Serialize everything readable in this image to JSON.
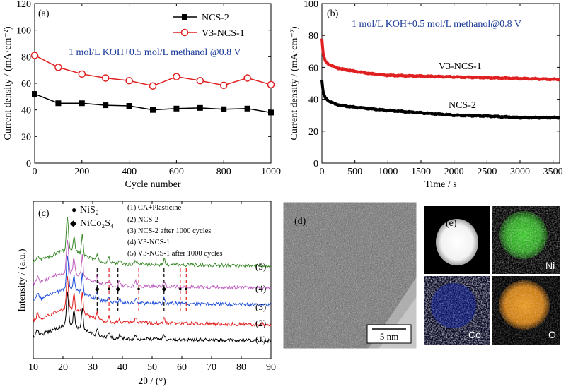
{
  "chart_data": [
    {
      "panel": "(a)",
      "type": "line",
      "xlabel": "Cycle number",
      "ylabel": "Current density / (mA·cm⁻²)",
      "xlim": [
        0,
        1000
      ],
      "ylim": [
        0,
        120
      ],
      "xticks": [
        0,
        200,
        400,
        600,
        800,
        1000
      ],
      "yticks": [
        0,
        20,
        40,
        60,
        80,
        100,
        120
      ],
      "annotation": "1 mol/L KOH+0.5 mol/L methanol @0.8 V",
      "legend_position": "top-right",
      "x": [
        0,
        100,
        200,
        300,
        400,
        500,
        600,
        700,
        800,
        900,
        1000
      ],
      "series": [
        {
          "name": "NCS-2",
          "color": "#000000",
          "marker": "square",
          "values": [
            52,
            45,
            45,
            43.5,
            43,
            40,
            41,
            41.5,
            40.5,
            41,
            38
          ]
        },
        {
          "name": "V3-NCS-1",
          "color": "#e02020",
          "marker": "circle",
          "values": [
            81,
            72,
            67,
            64,
            62,
            58,
            65,
            62,
            58.5,
            64,
            59
          ]
        }
      ]
    },
    {
      "panel": "(b)",
      "type": "line",
      "xlabel": "Time / s",
      "ylabel": "Current density / (mA·cm⁻²)",
      "xlim": [
        0,
        3600
      ],
      "ylim": [
        0,
        100
      ],
      "xticks": [
        0,
        500,
        1000,
        1500,
        2000,
        2500,
        3000,
        3500
      ],
      "yticks": [
        0,
        20,
        40,
        60,
        80,
        100
      ],
      "annotation": "1 mol/L KOH+0.5 mol/L methanol@0.8 V",
      "series": [
        {
          "name": "V3-NCS-1",
          "color": "#e02020",
          "x": [
            0,
            20,
            50,
            100,
            200,
            300,
            500,
            750,
            1000,
            1500,
            2000,
            2500,
            3000,
            3500,
            3600
          ],
          "values": [
            78,
            68,
            64,
            62,
            60,
            59,
            57.5,
            56,
            55,
            54.5,
            54,
            53.5,
            53,
            52.5,
            52.5
          ]
        },
        {
          "name": "NCS-2",
          "color": "#000000",
          "x": [
            0,
            20,
            50,
            100,
            200,
            300,
            500,
            750,
            1000,
            1500,
            2000,
            2500,
            3000,
            3500,
            3600
          ],
          "values": [
            52,
            44,
            41,
            39,
            37,
            36,
            35,
            34,
            33,
            31.5,
            30,
            29.5,
            28.5,
            28.5,
            28.5
          ]
        }
      ]
    },
    {
      "panel": "(c)",
      "type": "line",
      "xlabel": "2θ / (°)",
      "ylabel": "Intensity / (a.u.)",
      "xlim": [
        10,
        90
      ],
      "xticks": [
        10,
        20,
        30,
        40,
        50,
        60,
        70,
        80,
        90
      ],
      "legend_markers": [
        {
          "symbol": "●",
          "label": "NiS₂"
        },
        {
          "symbol": "◆",
          "label": "NiCo₂S₄"
        }
      ],
      "legend_text": [
        "(1) CA+Plasticine",
        "(2) NCS-2",
        "(3) NCS-2 after 1000 cycles",
        "(4) V3-NCS-1",
        "(5) V3-NCS-1 after 1000 cycles"
      ],
      "series": [
        {
          "name": "(1)",
          "color": "#000000"
        },
        {
          "name": "(2)",
          "color": "#e02020"
        },
        {
          "name": "(3)",
          "color": "#1f4fd8"
        },
        {
          "name": "(4)",
          "color": "#c060c0"
        },
        {
          "name": "(5)",
          "color": "#3a8a2a"
        }
      ],
      "reference_peaks": [
        {
          "two_theta": 31.5,
          "phase": "NiCo₂S₄",
          "color": "#000000"
        },
        {
          "two_theta": 35.5,
          "phase": "NiS₂",
          "color": "#e02020"
        },
        {
          "two_theta": 38.5,
          "phase": "NiCo₂S₄",
          "color": "#000000"
        },
        {
          "two_theta": 45.5,
          "phase": "NiS₂",
          "color": "#e02020"
        },
        {
          "two_theta": 54.0,
          "phase": "NiCo₂S₄",
          "color": "#000000"
        },
        {
          "two_theta": 59.5,
          "phase": "NiS₂",
          "color": "#e02020"
        },
        {
          "two_theta": 61.5,
          "phase": "NiS₂",
          "color": "#e02020"
        }
      ]
    }
  ],
  "panel_d": {
    "label": "(d)",
    "scale_bar": "5 nm"
  },
  "panel_e": {
    "label": "(e)",
    "maps": [
      "Ni",
      "Co",
      "O"
    ]
  }
}
